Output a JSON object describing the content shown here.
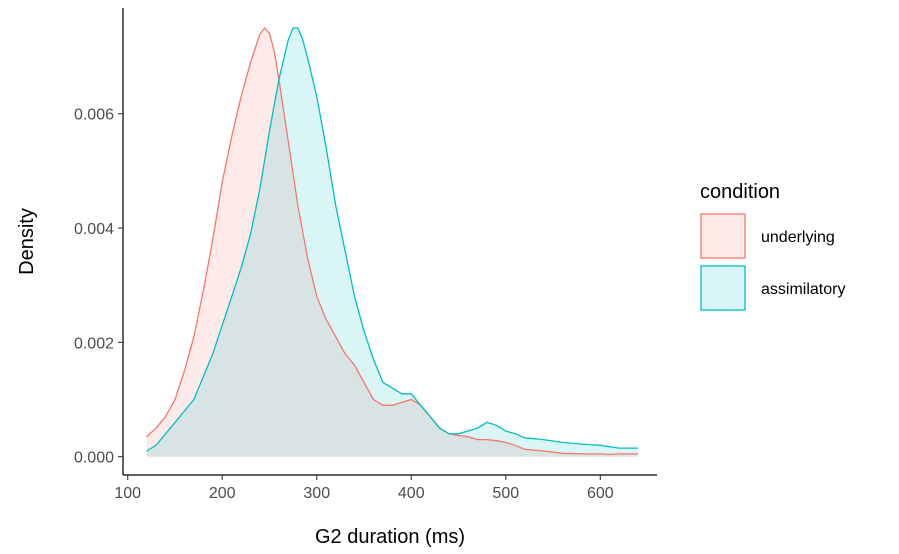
{
  "chart_data": {
    "type": "area",
    "title": "",
    "xlabel": "G2 duration (ms)",
    "ylabel": "Density",
    "xlim": [
      95,
      660
    ],
    "ylim": [
      -0.00032,
      0.00785
    ],
    "x_ticks": [
      100,
      200,
      300,
      400,
      500,
      600
    ],
    "x_tick_labels": [
      "100",
      "200",
      "300",
      "400",
      "500",
      "600"
    ],
    "y_ticks": [
      0.0,
      0.002,
      0.004,
      0.006
    ],
    "y_tick_labels": [
      "0.000",
      "0.002",
      "0.004",
      "0.006"
    ],
    "grid": false,
    "legend": {
      "title": "condition",
      "position": "right",
      "entries": [
        "underlying",
        "assimilatory"
      ]
    },
    "series": [
      {
        "name": "underlying",
        "color": "#F8766D",
        "fill": "#F8766D",
        "fill_opacity": 0.15,
        "x": [
          120,
          130,
          140,
          150,
          160,
          170,
          180,
          190,
          200,
          210,
          220,
          230,
          240,
          245,
          250,
          255,
          260,
          270,
          280,
          290,
          300,
          310,
          320,
          330,
          340,
          350,
          360,
          370,
          380,
          390,
          400,
          410,
          420,
          430,
          440,
          450,
          460,
          470,
          480,
          490,
          500,
          510,
          520,
          540,
          560,
          580,
          600,
          610,
          620,
          640
        ],
        "y": [
          0.00035,
          0.0005,
          0.0007,
          0.001,
          0.0015,
          0.0021,
          0.0029,
          0.0038,
          0.0048,
          0.0056,
          0.0063,
          0.0069,
          0.0074,
          0.0075,
          0.0074,
          0.0071,
          0.0066,
          0.0055,
          0.0044,
          0.0035,
          0.0028,
          0.0024,
          0.0021,
          0.0018,
          0.0016,
          0.0013,
          0.001,
          0.0009,
          0.0009,
          0.00095,
          0.001,
          0.0009,
          0.0007,
          0.0005,
          0.0004,
          0.00037,
          0.00035,
          0.0003,
          0.0003,
          0.00028,
          0.00025,
          0.0002,
          0.00013,
          0.0001,
          6e-05,
          5e-05,
          5e-05,
          4e-05,
          5e-05,
          5e-05
        ]
      },
      {
        "name": "assimilatory",
        "color": "#00BFC4",
        "fill": "#00BFC4",
        "fill_opacity": 0.15,
        "x": [
          120,
          130,
          140,
          150,
          160,
          170,
          180,
          190,
          200,
          210,
          220,
          230,
          240,
          250,
          260,
          270,
          275,
          280,
          285,
          290,
          300,
          310,
          320,
          330,
          340,
          350,
          360,
          370,
          380,
          390,
          400,
          410,
          420,
          430,
          440,
          450,
          460,
          470,
          480,
          490,
          500,
          510,
          520,
          540,
          560,
          580,
          600,
          620,
          640
        ],
        "y": [
          0.0001,
          0.0002,
          0.0004,
          0.0006,
          0.0008,
          0.001,
          0.0014,
          0.0018,
          0.0023,
          0.0028,
          0.0033,
          0.0039,
          0.0047,
          0.0057,
          0.0066,
          0.0073,
          0.0075,
          0.0075,
          0.0073,
          0.007,
          0.0063,
          0.0054,
          0.0044,
          0.0036,
          0.0028,
          0.0022,
          0.0017,
          0.0013,
          0.0012,
          0.0011,
          0.0011,
          0.0009,
          0.0007,
          0.0005,
          0.0004,
          0.0004,
          0.00045,
          0.0005,
          0.0006,
          0.00055,
          0.00045,
          0.0004,
          0.00033,
          0.0003,
          0.00025,
          0.00022,
          0.0002,
          0.00015,
          0.00015
        ]
      }
    ]
  }
}
